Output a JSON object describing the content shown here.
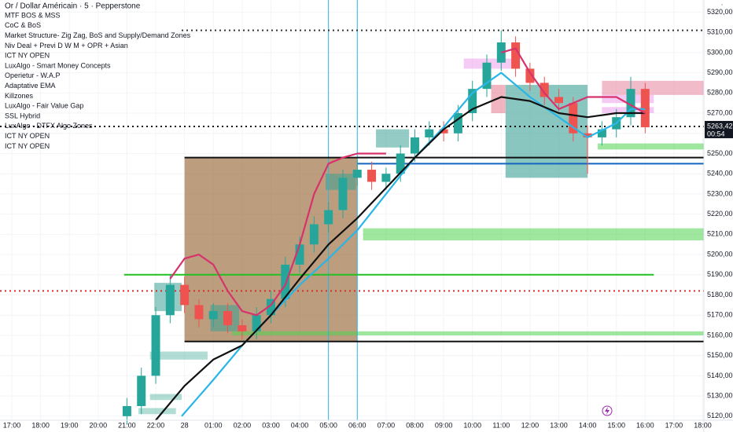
{
  "chart_data": {
    "type": "candlestick",
    "title": "Or / Dollar Américain · 5 · Pepperstone",
    "indicators": [
      "MTF BOS & MSS",
      "CoC & BoS",
      "Market Structure- Zig Zag, BoS and Supply/Demand Zones",
      "Niv Deal + Previ D W M + OPR + Asian",
      "ICT NY OPEN",
      "LuxAlgo - Smart Money Concepts",
      "Operietur - W.A.P",
      "Adaptative EMA",
      "Killzones",
      "LuxAlgo - Fair Value Gap",
      "SSL Hybrid",
      "LuxAlgo - DTFX Algo Zones",
      "ICT NY OPEN",
      "ICT NY OPEN"
    ],
    "xlim": [
      -0.41,
      24.04
    ],
    "xticks": [
      {
        "value": 0,
        "label": "17:00"
      },
      {
        "value": 1,
        "label": "18:00"
      },
      {
        "value": 2,
        "label": "19:00"
      },
      {
        "value": 3,
        "label": "20:00"
      },
      {
        "value": 4,
        "label": "21:00"
      },
      {
        "value": 5,
        "label": "22:00"
      },
      {
        "value": 6,
        "label": "28"
      },
      {
        "value": 7,
        "label": "01:00"
      },
      {
        "value": 8,
        "label": "02:00"
      },
      {
        "value": 9,
        "label": "03:00"
      },
      {
        "value": 10,
        "label": "04:00"
      },
      {
        "value": 11,
        "label": "05:00"
      },
      {
        "value": 12,
        "label": "06:00"
      },
      {
        "value": 13,
        "label": "07:00"
      },
      {
        "value": 14,
        "label": "08:00"
      },
      {
        "value": 15,
        "label": "09:00"
      },
      {
        "value": 16,
        "label": "10:00"
      },
      {
        "value": 17,
        "label": "11:00"
      },
      {
        "value": 18,
        "label": "12:00"
      },
      {
        "value": 19,
        "label": "13:00"
      },
      {
        "value": 20,
        "label": "14:00"
      },
      {
        "value": 21,
        "label": "15:00"
      },
      {
        "value": 22,
        "label": "16:00"
      },
      {
        "value": 23,
        "label": "17:00"
      },
      {
        "value": 24,
        "label": "18:00"
      }
    ],
    "ylim": [
      5118,
      5326
    ],
    "yticks": [
      {
        "value": 5120,
        "label": "5120,00"
      },
      {
        "value": 5130,
        "label": "5130,00"
      },
      {
        "value": 5140,
        "label": "5140,00"
      },
      {
        "value": 5150,
        "label": "5150,00"
      },
      {
        "value": 5160,
        "label": "5160,00"
      },
      {
        "value": 5170,
        "label": "5170,00"
      },
      {
        "value": 5180,
        "label": "5180,00"
      },
      {
        "value": 5190,
        "label": "5190,00"
      },
      {
        "value": 5200,
        "label": "5200,00"
      },
      {
        "value": 5210,
        "label": "5210,00"
      },
      {
        "value": 5220,
        "label": "5220,00"
      },
      {
        "value": 5230,
        "label": "5230,00"
      },
      {
        "value": 5240,
        "label": "5240,00"
      },
      {
        "value": 5250,
        "label": "5250,00"
      },
      {
        "value": 5260,
        "label": "5260,00"
      },
      {
        "value": 5270,
        "label": "5270,00"
      },
      {
        "value": 5280,
        "label": "5280,00"
      },
      {
        "value": 5290,
        "label": "5290,00"
      },
      {
        "value": 5300,
        "label": "5300,00"
      },
      {
        "value": 5310,
        "label": "5310,00"
      },
      {
        "value": 5320,
        "label": "5320,00"
      }
    ],
    "x": [
      4,
      4.5,
      5,
      5.5,
      6,
      6.5,
      7,
      7.5,
      8,
      8.5,
      9,
      9.5,
      10,
      10.5,
      11,
      11.5,
      12,
      12.5,
      13,
      13.5,
      14,
      14.5,
      15,
      15.5,
      16,
      16.5,
      17,
      17.5,
      18,
      18.5,
      19,
      19.5,
      20,
      20.5,
      21,
      21.5,
      22
    ],
    "open": [
      5120,
      5125,
      5140,
      5170,
      5185,
      5175,
      5168,
      5172,
      5165,
      5162,
      5170,
      5178,
      5195,
      5205,
      5215,
      5222,
      5238,
      5242,
      5236,
      5240,
      5250,
      5258,
      5262,
      5260,
      5270,
      5282,
      5295,
      5305,
      5292,
      5285,
      5278,
      5275,
      5260,
      5258,
      5262,
      5268,
      5282
    ],
    "high": [
      5129,
      5144,
      5174,
      5190,
      5189,
      5178,
      5176,
      5176,
      5168,
      5174,
      5182,
      5199,
      5209,
      5219,
      5226,
      5242,
      5247,
      5246,
      5243,
      5254,
      5262,
      5266,
      5266,
      5274,
      5286,
      5299,
      5311,
      5308,
      5295,
      5288,
      5282,
      5278,
      5264,
      5266,
      5272,
      5288,
      5285
    ],
    "low": [
      5116,
      5121,
      5136,
      5166,
      5171,
      5164,
      5164,
      5161,
      5158,
      5158,
      5166,
      5174,
      5191,
      5201,
      5211,
      5218,
      5234,
      5232,
      5232,
      5236,
      5246,
      5254,
      5256,
      5256,
      5266,
      5278,
      5291,
      5288,
      5281,
      5274,
      5271,
      5256,
      5240,
      5254,
      5258,
      5264,
      5260
    ],
    "close": [
      5125,
      5140,
      5170,
      5185,
      5175,
      5168,
      5172,
      5165,
      5162,
      5170,
      5178,
      5195,
      5205,
      5215,
      5222,
      5238,
      5242,
      5236,
      5240,
      5250,
      5258,
      5262,
      5260,
      5270,
      5282,
      5295,
      5305,
      5292,
      5285,
      5278,
      5275,
      5260,
      5258,
      5262,
      5268,
      5282,
      5263
    ],
    "up_color": "#26a69a",
    "down_color": "#ef5350",
    "series": [
      {
        "color": "#29b6e6",
        "x": [
          5.9,
          7,
          8,
          9,
          10,
          11,
          12,
          13,
          14,
          15,
          16,
          17,
          18,
          19,
          20,
          21,
          21.5,
          22
        ],
        "values": [
          5120,
          5138,
          5155,
          5170,
          5185,
          5198,
          5212,
          5230,
          5248,
          5263,
          5280,
          5290,
          5278,
          5268,
          5258,
          5265,
          5272,
          5272
        ]
      },
      {
        "color": "#111111",
        "x": [
          5,
          6,
          7,
          8,
          9,
          10,
          11,
          12,
          13,
          14,
          15,
          16,
          17,
          18,
          19,
          20,
          21,
          22
        ],
        "values": [
          5118,
          5135,
          5148,
          5155,
          5170,
          5188,
          5205,
          5218,
          5233,
          5248,
          5262,
          5272,
          5278,
          5276,
          5270,
          5268,
          5270,
          5270
        ]
      },
      {
        "color": "#d6336c",
        "x": [
          5.5,
          6,
          6.5,
          7,
          7.5,
          8,
          8.5,
          9,
          9.5,
          10,
          10.5,
          11,
          11.5,
          12,
          12.5,
          13,
          15,
          17,
          17.5,
          18,
          18.5,
          19,
          20,
          21,
          22
        ],
        "values": [
          5188,
          5198,
          5200,
          5195,
          5182,
          5172,
          5170,
          5175,
          5185,
          5205,
          5230,
          5245,
          5248,
          5250,
          5250,
          5250,
          null,
          5300,
          5302,
          5290,
          5280,
          5272,
          5278,
          5278,
          5270
        ]
      }
    ],
    "zones": [
      {
        "x": [
          6,
          12
        ],
        "y": [
          5157,
          5248
        ],
        "color": "rgba(160,115,70,0.7)"
      },
      {
        "x": [
          17.15,
          20
        ],
        "y": [
          5238,
          5284
        ],
        "color": "rgba(60,160,150,0.6)"
      },
      {
        "x": [
          16.65,
          17.15
        ],
        "y": [
          5270,
          5284
        ],
        "color": "rgba(230,120,140,0.55)"
      },
      {
        "x": [
          20.5,
          24.04
        ],
        "y": [
          5279,
          5286
        ],
        "color": "rgba(230,120,150,0.5)"
      },
      {
        "x": [
          15.7,
          17.4
        ],
        "y": [
          5292,
          5297
        ],
        "color": "rgba(235,150,235,0.5)"
      },
      {
        "x": [
          20.5,
          22.3
        ],
        "y": [
          5275,
          5279
        ],
        "color": "rgba(235,150,235,0.5)"
      },
      {
        "x": [
          20.5,
          22.3
        ],
        "y": [
          5270,
          5273
        ],
        "color": "rgba(235,150,235,0.5)"
      },
      {
        "x": [
          4.95,
          5.9
        ],
        "y": [
          5172,
          5186
        ],
        "color": "rgba(60,160,150,0.55)"
      },
      {
        "x": [
          6.9,
          7.9
        ],
        "y": [
          5162,
          5175
        ],
        "color": "rgba(60,160,150,0.55)"
      },
      {
        "x": [
          10.9,
          11.95
        ],
        "y": [
          5232,
          5240
        ],
        "color": "rgba(60,160,150,0.55)"
      },
      {
        "x": [
          12.65,
          13.8
        ],
        "y": [
          5253,
          5262
        ],
        "color": "rgba(60,160,150,0.55)"
      },
      {
        "x": [
          12.2,
          24.04
        ],
        "y": [
          5207,
          5213
        ],
        "color": "rgba(80,210,80,0.55)"
      },
      {
        "x": [
          20.35,
          24.04
        ],
        "y": [
          5252,
          5255
        ],
        "color": "rgba(80,210,80,0.55)"
      },
      {
        "x": [
          7.65,
          24.04
        ],
        "y": [
          5160,
          5162
        ],
        "color": "rgba(80,210,80,0.55)"
      },
      {
        "x": [
          4.8,
          6.8
        ],
        "y": [
          5148,
          5152
        ],
        "color": "rgba(60,170,150,0.4)"
      },
      {
        "x": [
          4.8,
          5.9
        ],
        "y": [
          5128,
          5131
        ],
        "color": "rgba(60,170,150,0.4)"
      },
      {
        "x": [
          4.4,
          5.7
        ],
        "y": [
          5121,
          5124
        ],
        "color": "rgba(60,170,150,0.4)"
      }
    ],
    "levels": [
      {
        "value": 5248,
        "x": [
          6,
          24.04
        ],
        "color": "#111111",
        "style": "solid"
      },
      {
        "value": 5157,
        "x": [
          6,
          24.04
        ],
        "color": "#111111",
        "style": "solid"
      },
      {
        "value": 5190,
        "x": [
          3.9,
          22.3
        ],
        "color": "#22c022",
        "style": "solid"
      },
      {
        "value": 5245,
        "x": [
          12,
          24.04
        ],
        "color": "#1565c0",
        "style": "solid"
      },
      {
        "value": 5182,
        "x": [
          -0.41,
          24.04
        ],
        "color": "#d32f2f",
        "style": "dotted"
      },
      {
        "value": 5311,
        "x": [
          5.9,
          24.04
        ],
        "color": "#333333",
        "style": "dotted"
      },
      {
        "value": 5263.42,
        "x": [
          -0.41,
          24.04
        ],
        "color": "#111111",
        "style": "dotted"
      }
    ],
    "vlines": [
      {
        "value": 11,
        "color": "#29b6e6"
      },
      {
        "value": 12,
        "color": "#29b6e6"
      }
    ],
    "last_price": {
      "value": 5263.42,
      "label": "5263,42"
    },
    "countdown": "00:54"
  }
}
